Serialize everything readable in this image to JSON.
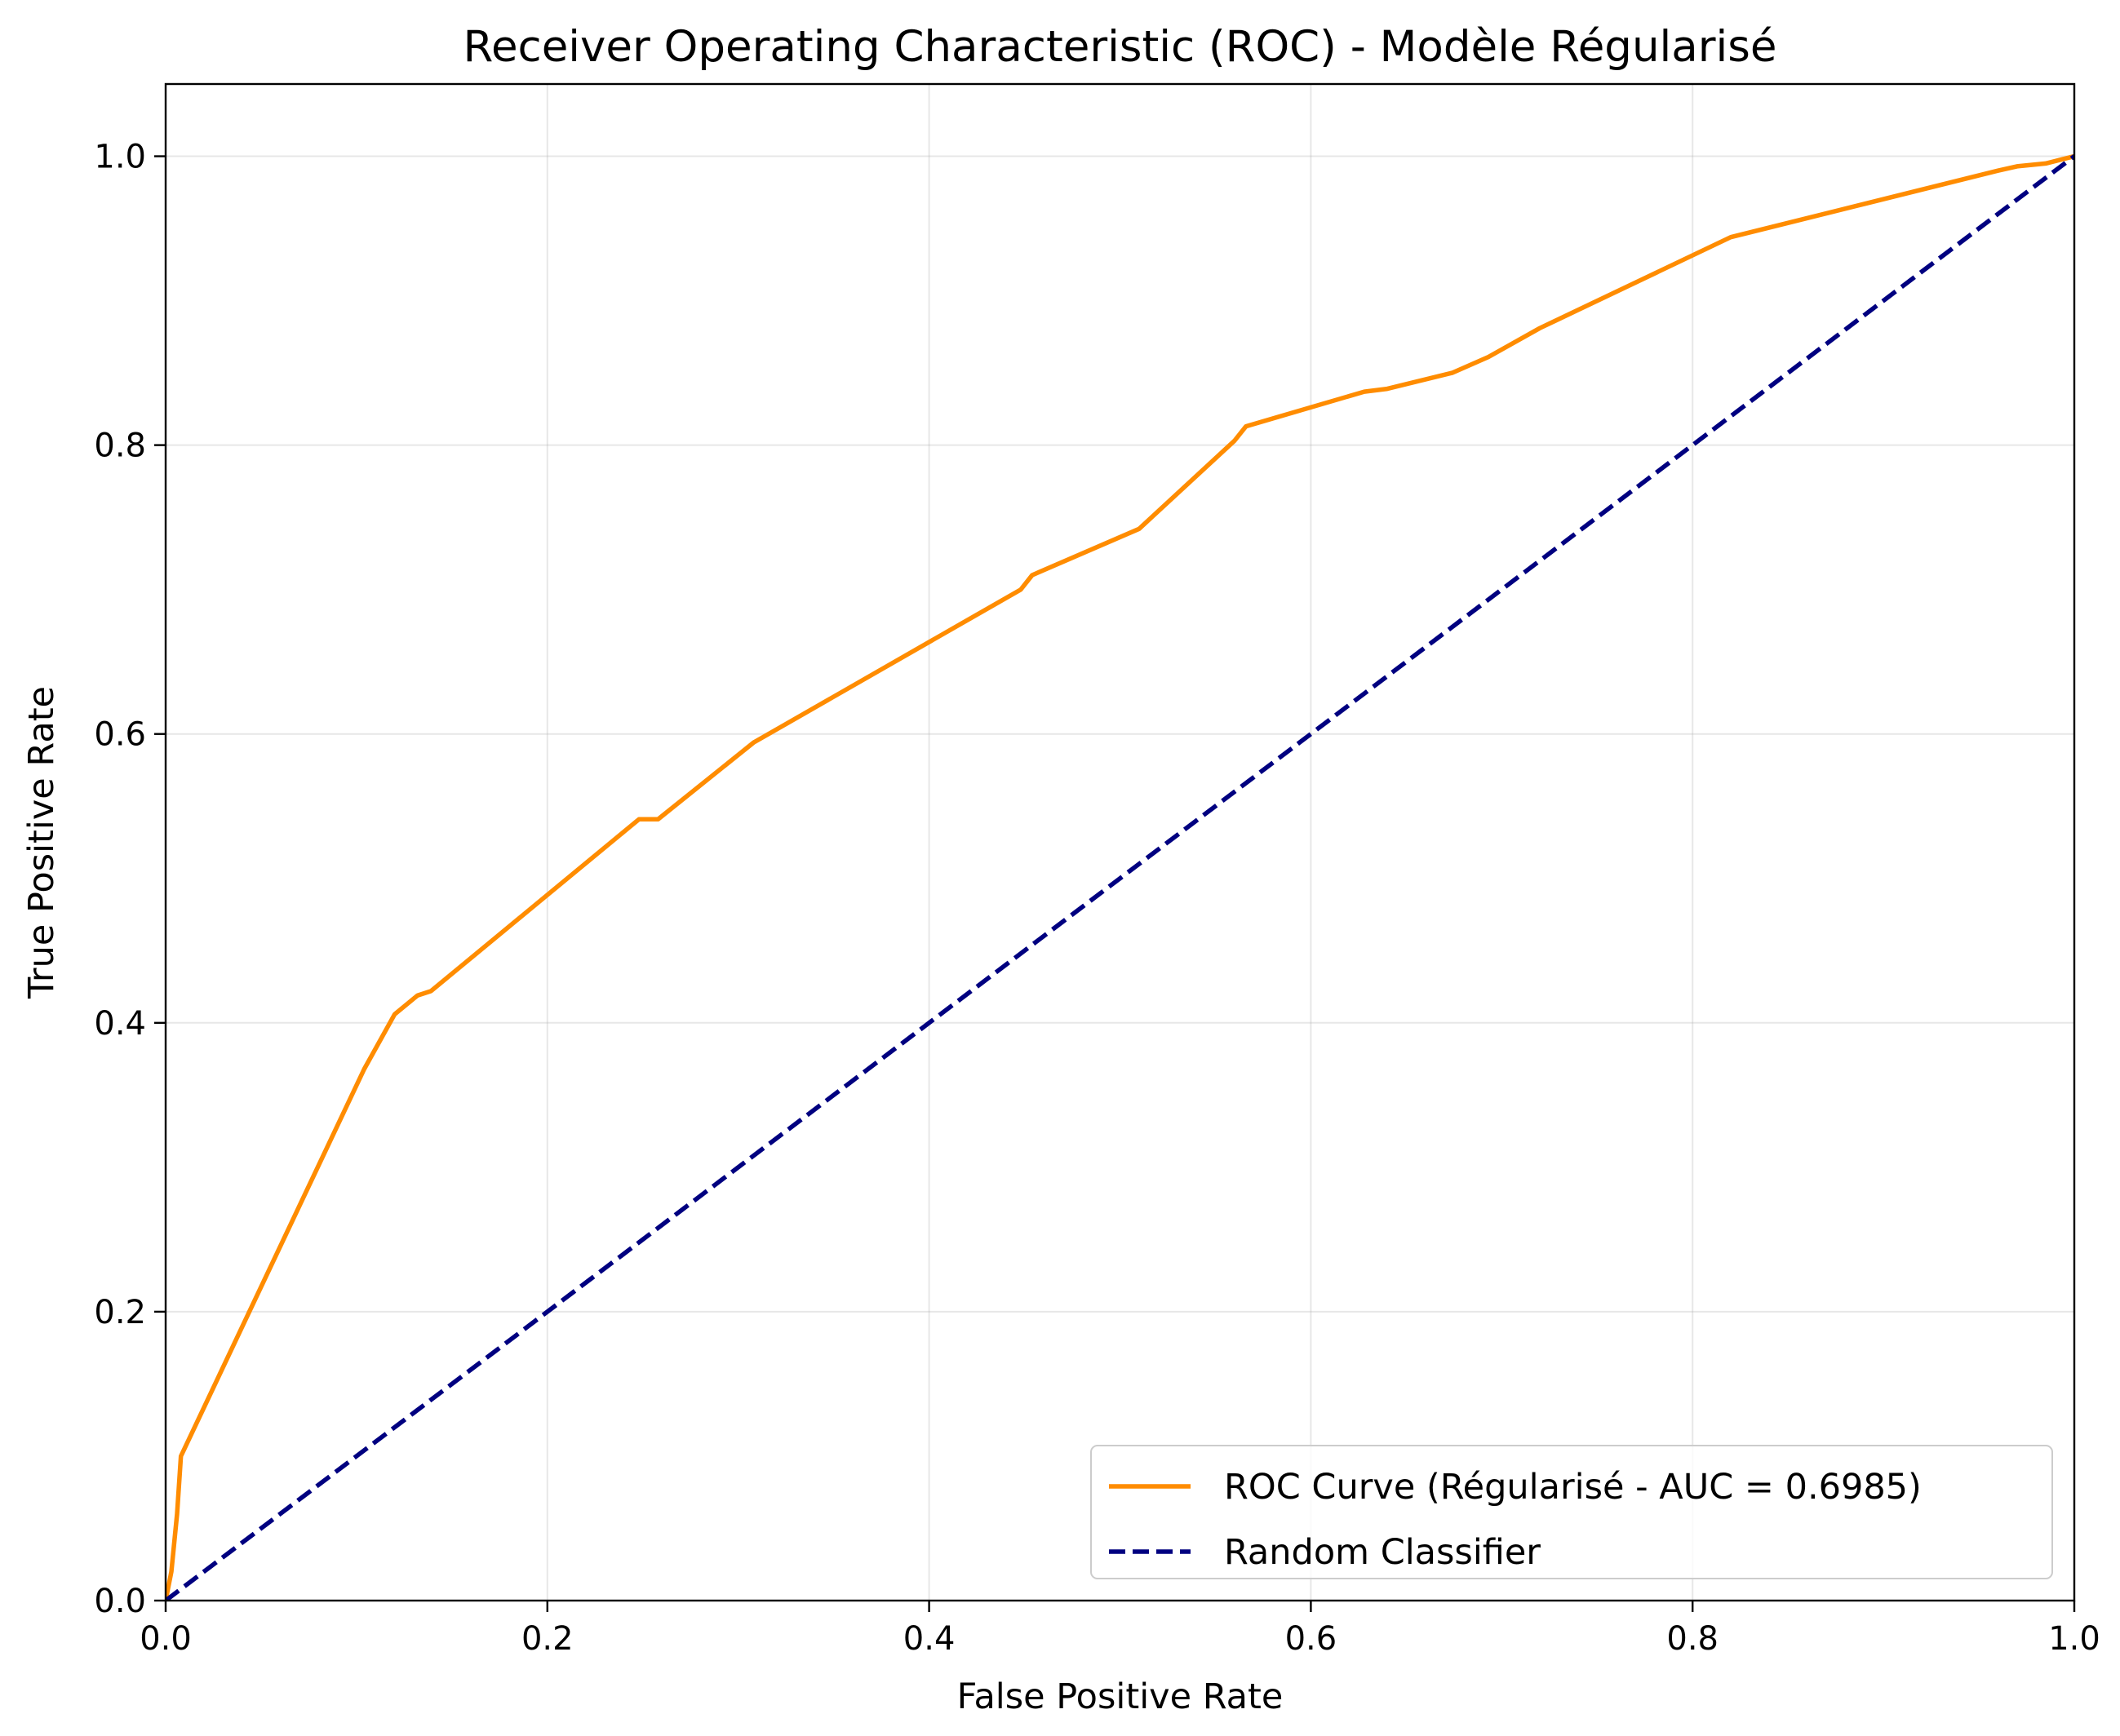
{
  "chart_data": {
    "type": "line",
    "title": "Receiver Operating Characteristic (ROC) - Modèle Régularisé",
    "xlabel": "False Positive Rate",
    "ylabel": "True Positive Rate",
    "xlim": [
      0.0,
      1.0
    ],
    "ylim": [
      0.0,
      1.05
    ],
    "xticks": [
      "0.0",
      "0.2",
      "0.4",
      "0.6",
      "0.8",
      "1.0"
    ],
    "yticks": [
      "0.0",
      "0.2",
      "0.4",
      "0.6",
      "0.8",
      "1.0"
    ],
    "grid": true,
    "legend_position": "bottom-right",
    "series": [
      {
        "name": "ROC Curve (Régularisé - AUC = 0.6985)",
        "color": "#ff8c00",
        "style": "solid",
        "points": [
          [
            0.0,
            0.0
          ],
          [
            0.003,
            0.02
          ],
          [
            0.006,
            0.06
          ],
          [
            0.008,
            0.1
          ],
          [
            0.104,
            0.368
          ],
          [
            0.12,
            0.406
          ],
          [
            0.132,
            0.419
          ],
          [
            0.139,
            0.422
          ],
          [
            0.248,
            0.541
          ],
          [
            0.258,
            0.541
          ],
          [
            0.308,
            0.594
          ],
          [
            0.448,
            0.7
          ],
          [
            0.454,
            0.71
          ],
          [
            0.51,
            0.742
          ],
          [
            0.56,
            0.803
          ],
          [
            0.566,
            0.813
          ],
          [
            0.628,
            0.837
          ],
          [
            0.64,
            0.839
          ],
          [
            0.674,
            0.85
          ],
          [
            0.693,
            0.861
          ],
          [
            0.72,
            0.881
          ],
          [
            0.82,
            0.944
          ],
          [
            0.96,
            0.99
          ],
          [
            0.97,
            0.993
          ],
          [
            0.985,
            0.995
          ],
          [
            1.0,
            1.0
          ]
        ]
      },
      {
        "name": "Random Classifier",
        "color": "#000080",
        "style": "dashed",
        "points": [
          [
            0.0,
            0.0
          ],
          [
            1.0,
            1.0
          ]
        ]
      }
    ]
  }
}
